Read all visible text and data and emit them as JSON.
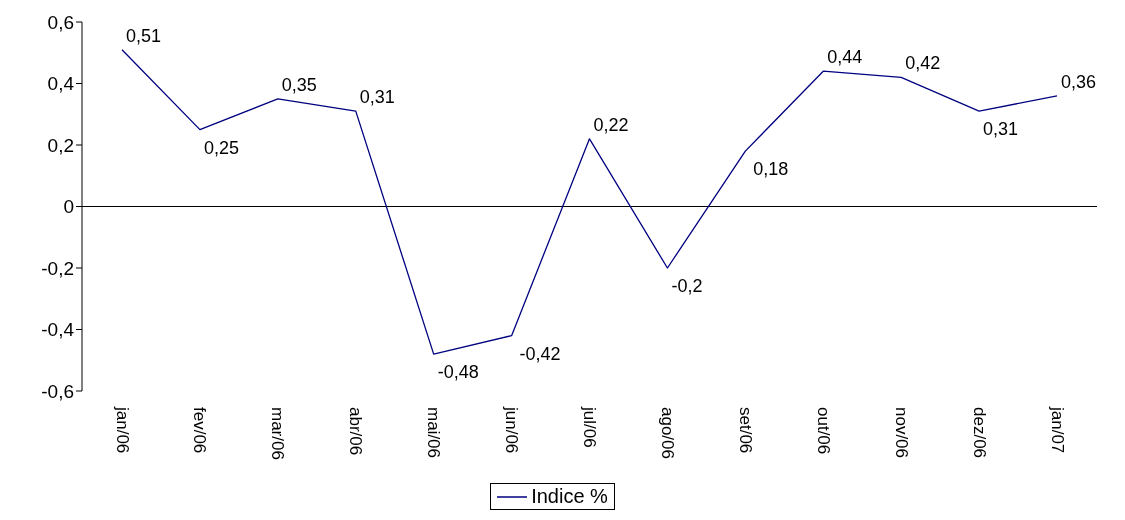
{
  "chart_data": {
    "type": "line",
    "categories": [
      "jan/06",
      "fev/06",
      "mar/06",
      "abr/06",
      "mai/06",
      "jun/06",
      "jul/06",
      "ago/06",
      "set/06",
      "out/06",
      "nov/06",
      "dez/06",
      "jan/07"
    ],
    "series": [
      {
        "name": "Indice %",
        "color": "#000080",
        "values": [
          0.51,
          0.25,
          0.35,
          0.31,
          -0.48,
          -0.42,
          0.22,
          -0.2,
          0.18,
          0.44,
          0.42,
          0.31,
          0.36
        ],
        "value_labels": [
          "0,51",
          "0,25",
          "0,35",
          "0,31",
          "-0,48",
          "-0,42",
          "0,22",
          "-0,2",
          "0,18",
          "0,44",
          "0,42",
          "0,31",
          "0,36"
        ]
      }
    ],
    "ylim": [
      -0.6,
      0.6
    ],
    "yticks": [
      {
        "value": -0.6,
        "label": "-0,6"
      },
      {
        "value": -0.4,
        "label": "-0,4"
      },
      {
        "value": -0.2,
        "label": "-0,2"
      },
      {
        "value": 0,
        "label": "0"
      },
      {
        "value": 0.2,
        "label": "0,2"
      },
      {
        "value": 0.4,
        "label": "0,4"
      },
      {
        "value": 0.6,
        "label": "0,6"
      }
    ],
    "grid": false,
    "ref_lines": [
      {
        "axis": "y",
        "value": 0,
        "color": "#000000"
      }
    ],
    "legend": "bottom",
    "marker": "none",
    "line_style": "solid"
  }
}
